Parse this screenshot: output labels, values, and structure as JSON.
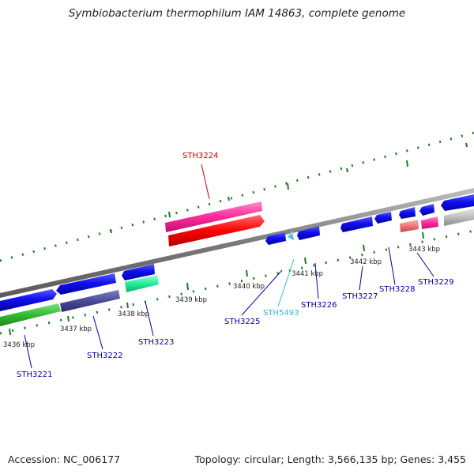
{
  "title": "Symbiobacterium thermophilum IAM 14863, complete genome",
  "accession": "Accession: NC_006177",
  "info": "Topology: circular; Length: 3,566,135 bp; Genes: 3,455",
  "colors": {
    "backbone": "#8a8a8a",
    "tick": "#1e7a1e",
    "blue": "#1010ee",
    "darkblue": "#1a1aa0",
    "red_label": "#cc0000",
    "cyan_label": "#33bbdd"
  },
  "kbp_labels": [
    "3436 kbp",
    "3437 kbp",
    "3438 kbp",
    "3439 kbp",
    "3440 kbp",
    "3441 kbp",
    "3442 kbp",
    "3443 kbp"
  ],
  "genes": [
    {
      "id": "STH3221",
      "color": "#0000aa"
    },
    {
      "id": "STH3222",
      "color": "#0000aa"
    },
    {
      "id": "STH3223",
      "color": "#0000aa"
    },
    {
      "id": "STH3224",
      "color": "#cc0000"
    },
    {
      "id": "STH3225",
      "color": "#0000aa"
    },
    {
      "id": "STH5493",
      "color": "#33bbdd"
    },
    {
      "id": "STH3226",
      "color": "#0000aa"
    },
    {
      "id": "STH3227",
      "color": "#0000aa"
    },
    {
      "id": "STH3228",
      "color": "#0000aa"
    },
    {
      "id": "STH3229",
      "color": "#0000aa"
    }
  ]
}
